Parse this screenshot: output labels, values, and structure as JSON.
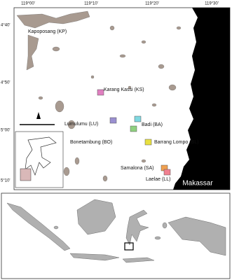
{
  "map": {
    "lon_labels": [
      "119°00'",
      "119°10'",
      "119°20'",
      "119°30'"
    ],
    "lat_labels": [
      "4°40'",
      "4°50'",
      "5°00'",
      "5°10'"
    ],
    "sites": [
      {
        "label": "Kapoposang (KP)",
        "color": "#ffffff"
      },
      {
        "label": "Karang Kassi (KS)",
        "color": "#e07fc0"
      },
      {
        "label": "Lumulumu (LU)",
        "color": "#9a8fd0"
      },
      {
        "label": "Badi (BA)",
        "color": "#7fd8e0"
      },
      {
        "label": "Bonetambung (BO)",
        "color": "#8fd07f"
      },
      {
        "label": "Barrang Lompo (BL)",
        "color": "#e8e040"
      },
      {
        "label": "Samalona (SA)",
        "color": "#f0a050"
      },
      {
        "label": "Laelae (LL)",
        "color": "#f08090"
      }
    ],
    "city": "Makassar"
  }
}
